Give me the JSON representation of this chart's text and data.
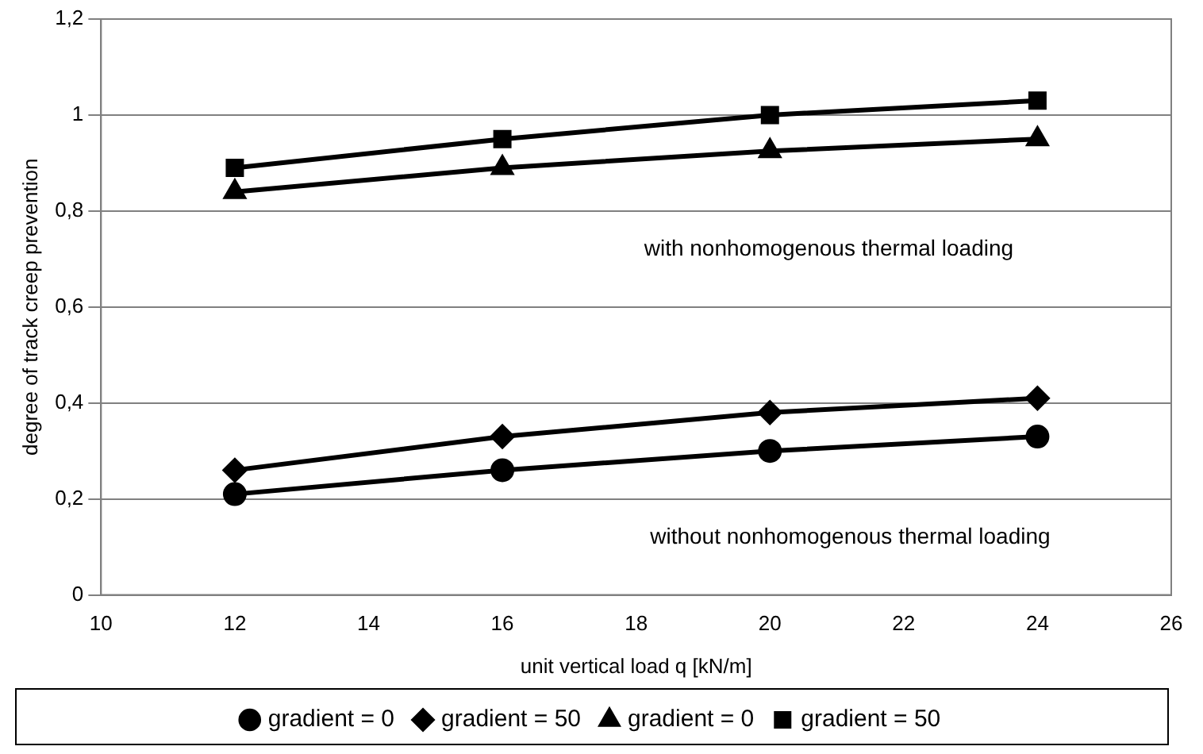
{
  "chart_data": {
    "type": "line",
    "xlabel": "unit vertical load q [kN/m]",
    "ylabel": "degree of track creep prevention",
    "x": [
      12,
      16,
      20,
      24
    ],
    "series": [
      {
        "name": "gradient = 0",
        "color": "#000000",
        "marker": "circle",
        "values": [
          0.21,
          0.26,
          0.3,
          0.33
        ]
      },
      {
        "name": "gradient = 50",
        "color": "#000000",
        "marker": "diamond",
        "values": [
          0.26,
          0.33,
          0.38,
          0.41
        ]
      },
      {
        "name": "gradient = 0",
        "color": "#000000",
        "marker": "triangle",
        "values": [
          0.84,
          0.89,
          0.925,
          0.95
        ]
      },
      {
        "name": "gradient = 50",
        "color": "#000000",
        "marker": "square",
        "values": [
          0.89,
          0.95,
          1.0,
          1.03
        ]
      }
    ],
    "xlim": [
      10,
      26
    ],
    "xticks": [
      10,
      12,
      14,
      16,
      18,
      20,
      22,
      24,
      26
    ],
    "ylim": [
      0,
      1.2
    ],
    "yticks": [
      0,
      {
        "value": 0.2,
        "label": "0,2"
      },
      {
        "value": 0.4,
        "label": "0,4"
      },
      {
        "value": 0.6,
        "label": "0,6"
      },
      {
        "value": 0.8,
        "label": "0,8"
      },
      1,
      {
        "value": 1.2,
        "label": "1,2"
      }
    ],
    "annotations": [
      "with nonhomogenous thermal loading",
      "without nonhomogenous thermal loading"
    ],
    "grid": "y",
    "legend": "bottom",
    "line_style": "solid"
  }
}
